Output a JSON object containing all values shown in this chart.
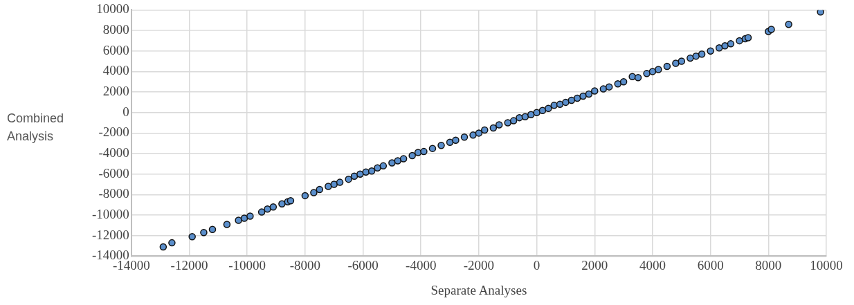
{
  "chart_data": {
    "type": "scatter",
    "xlabel": "Separate Analyses",
    "ylabel": "Combined Analysis",
    "x": [
      -12900,
      -12600,
      -11900,
      -11500,
      -11200,
      -10700,
      -10300,
      -10100,
      -9900,
      -9500,
      -9300,
      -9100,
      -8800,
      -8600,
      -8500,
      -8000,
      -7700,
      -7500,
      -7200,
      -7000,
      -6800,
      -6500,
      -6300,
      -6100,
      -5900,
      -5700,
      -5500,
      -5300,
      -5000,
      -4800,
      -4600,
      -4300,
      -4100,
      -3900,
      -3600,
      -3300,
      -3000,
      -2800,
      -2500,
      -2200,
      -2000,
      -1800,
      -1500,
      -1300,
      -1000,
      -800,
      -600,
      -400,
      -200,
      0,
      200,
      400,
      600,
      800,
      1000,
      1200,
      1400,
      1600,
      1800,
      2000,
      2300,
      2500,
      2800,
      3000,
      3300,
      3500,
      3800,
      4000,
      4200,
      4500,
      4800,
      5000,
      5300,
      5500,
      5700,
      6000,
      6300,
      6500,
      6700,
      7000,
      7200,
      7300,
      8000,
      8100,
      8700,
      9800
    ],
    "values": [
      -13100,
      -12700,
      -12100,
      -11700,
      -11400,
      -10900,
      -10500,
      -10300,
      -10100,
      -9700,
      -9400,
      -9200,
      -8900,
      -8700,
      -8600,
      -8100,
      -7800,
      -7500,
      -7200,
      -7000,
      -6800,
      -6500,
      -6200,
      -6000,
      -5800,
      -5700,
      -5400,
      -5200,
      -4900,
      -4700,
      -4500,
      -4200,
      -3900,
      -3800,
      -3500,
      -3200,
      -2900,
      -2700,
      -2400,
      -2200,
      -2000,
      -1700,
      -1500,
      -1200,
      -1000,
      -800,
      -500,
      -400,
      -200,
      0,
      200,
      400,
      700,
      800,
      1000,
      1200,
      1400,
      1600,
      1800,
      2100,
      2300,
      2500,
      2800,
      3000,
      3500,
      3400,
      3800,
      4000,
      4200,
      4500,
      4800,
      5000,
      5300,
      5500,
      5700,
      6000,
      6300,
      6500,
      6700,
      7000,
      7200,
      7300,
      7900,
      8100,
      8600,
      9800
    ],
    "color": "#5b8fcc",
    "marker": "circle",
    "grid": true,
    "legend": false,
    "xlim": [
      -14000,
      10000
    ],
    "xticks": [
      -14000,
      -12000,
      -10000,
      -8000,
      -6000,
      -4000,
      -2000,
      0,
      2000,
      4000,
      6000,
      8000,
      10000
    ],
    "ylim": [
      -14000,
      10000
    ],
    "yticks": [
      -14000,
      -12000,
      -10000,
      -8000,
      -6000,
      -4000,
      -2000,
      0,
      2000,
      4000,
      6000,
      8000,
      10000
    ]
  }
}
